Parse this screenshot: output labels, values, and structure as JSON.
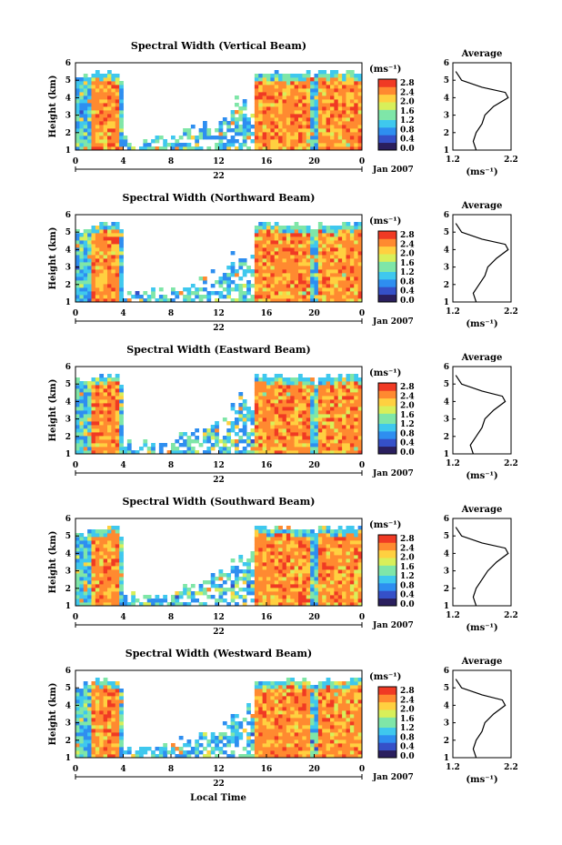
{
  "figure": {
    "xlabel": "Local Time",
    "date_label": "Jan 2007",
    "day_label": "22",
    "ylabel": "Height (km)",
    "colorbar_unit": "(ms⁻¹)",
    "avg_title": "Average",
    "avg_xlabel": "(ms⁻¹)"
  },
  "colors": {
    "scale": [
      "#2a1f5e",
      "#3550c8",
      "#2e8ef0",
      "#3fc8ee",
      "#7fe6a8",
      "#d8ef5a",
      "#ffd040",
      "#ff8a30",
      "#f03a24"
    ]
  },
  "chart_data": [
    {
      "type": "heatmap",
      "title": "Spectral Width (Vertical Beam)",
      "x_ticks": [
        "0",
        "4",
        "8",
        "12",
        "16",
        "20",
        "0"
      ],
      "xlim": [
        0,
        24
      ],
      "y_ticks": [
        "1",
        "2",
        "3",
        "4",
        "5",
        "6"
      ],
      "ylim": [
        1,
        6
      ],
      "colorbar_ticks": [
        "0.0",
        "0.4",
        "0.8",
        "1.2",
        "1.6",
        "2.0",
        "2.4",
        "2.8"
      ],
      "colorbar_range": [
        0.0,
        2.8
      ],
      "high_width_periods": [
        [
          1.5,
          3.5
        ],
        [
          15,
          19.5
        ],
        [
          20.5,
          24
        ]
      ],
      "avg_profile": {
        "x_ticks": [
          "1.2",
          "2.2"
        ],
        "xlim": [
          1.2,
          2.2
        ],
        "y_ticks": [
          "1",
          "2",
          "3",
          "4",
          "5",
          "6"
        ],
        "height": [
          1.0,
          1.5,
          2.0,
          2.5,
          3.0,
          3.5,
          4.0,
          4.3,
          4.6,
          5.0,
          5.5
        ],
        "width": [
          1.6,
          1.55,
          1.6,
          1.7,
          1.75,
          1.9,
          2.15,
          2.1,
          1.7,
          1.35,
          1.25
        ]
      }
    },
    {
      "type": "heatmap",
      "title": "Spectral Width (Northward Beam)",
      "x_ticks": [
        "0",
        "4",
        "8",
        "12",
        "16",
        "20",
        "0"
      ],
      "xlim": [
        0,
        24
      ],
      "y_ticks": [
        "1",
        "2",
        "3",
        "4",
        "5",
        "6"
      ],
      "ylim": [
        1,
        6
      ],
      "colorbar_ticks": [
        "0.0",
        "0.4",
        "0.8",
        "1.2",
        "1.6",
        "2.0",
        "2.4",
        "2.8"
      ],
      "colorbar_range": [
        0.0,
        2.8
      ],
      "high_width_periods": [
        [
          1.5,
          3.5
        ],
        [
          15,
          19.5
        ],
        [
          20.5,
          24
        ]
      ],
      "avg_profile": {
        "x_ticks": [
          "1.2",
          "2.2"
        ],
        "xlim": [
          1.2,
          2.2
        ],
        "y_ticks": [
          "1",
          "2",
          "3",
          "4",
          "5",
          "6"
        ],
        "height": [
          1.0,
          1.5,
          2.0,
          2.5,
          3.0,
          3.5,
          4.0,
          4.3,
          4.6,
          5.0,
          5.5
        ],
        "width": [
          1.6,
          1.55,
          1.65,
          1.75,
          1.8,
          1.95,
          2.15,
          2.1,
          1.7,
          1.35,
          1.25
        ]
      }
    },
    {
      "type": "heatmap",
      "title": "Spectral Width (Eastward Beam)",
      "x_ticks": [
        "0",
        "4",
        "8",
        "12",
        "16",
        "20",
        "0"
      ],
      "xlim": [
        0,
        24
      ],
      "y_ticks": [
        "1",
        "2",
        "3",
        "4",
        "5",
        "6"
      ],
      "ylim": [
        1,
        6
      ],
      "colorbar_ticks": [
        "0.0",
        "0.4",
        "0.8",
        "1.2",
        "1.6",
        "2.0",
        "2.4",
        "2.8"
      ],
      "colorbar_range": [
        0.0,
        2.8
      ],
      "high_width_periods": [
        [
          1.5,
          3.5
        ],
        [
          15,
          19.5
        ],
        [
          20.5,
          24
        ]
      ],
      "avg_profile": {
        "x_ticks": [
          "1.2",
          "2.2"
        ],
        "xlim": [
          1.2,
          2.2
        ],
        "y_ticks": [
          "1",
          "2",
          "3",
          "4",
          "5",
          "6"
        ],
        "height": [
          1.0,
          1.5,
          2.0,
          2.5,
          3.0,
          3.5,
          4.0,
          4.3,
          4.6,
          5.0,
          5.5
        ],
        "width": [
          1.55,
          1.5,
          1.6,
          1.7,
          1.75,
          1.9,
          2.1,
          2.05,
          1.7,
          1.35,
          1.25
        ]
      }
    },
    {
      "type": "heatmap",
      "title": "Spectral Width (Southward Beam)",
      "x_ticks": [
        "0",
        "4",
        "8",
        "12",
        "16",
        "20",
        "0"
      ],
      "xlim": [
        0,
        24
      ],
      "y_ticks": [
        "1",
        "2",
        "3",
        "4",
        "5",
        "6"
      ],
      "ylim": [
        1,
        6
      ],
      "colorbar_ticks": [
        "0.0",
        "0.4",
        "0.8",
        "1.2",
        "1.6",
        "2.0",
        "2.4",
        "2.8"
      ],
      "colorbar_range": [
        0.0,
        2.8
      ],
      "high_width_periods": [
        [
          1.5,
          3.5
        ],
        [
          15,
          19.5
        ],
        [
          20.5,
          24
        ]
      ],
      "avg_profile": {
        "x_ticks": [
          "1.2",
          "2.2"
        ],
        "xlim": [
          1.2,
          2.2
        ],
        "y_ticks": [
          "1",
          "2",
          "3",
          "4",
          "5",
          "6"
        ],
        "height": [
          1.0,
          1.5,
          2.0,
          2.5,
          3.0,
          3.5,
          4.0,
          4.3,
          4.6,
          5.0,
          5.5
        ],
        "width": [
          1.6,
          1.55,
          1.6,
          1.7,
          1.8,
          1.95,
          2.15,
          2.1,
          1.7,
          1.35,
          1.25
        ]
      }
    },
    {
      "type": "heatmap",
      "title": "Spectral Width (Westward Beam)",
      "x_ticks": [
        "0",
        "4",
        "8",
        "12",
        "16",
        "20",
        "0"
      ],
      "xlim": [
        0,
        24
      ],
      "y_ticks": [
        "1",
        "2",
        "3",
        "4",
        "5",
        "6"
      ],
      "ylim": [
        1,
        6
      ],
      "colorbar_ticks": [
        "0.0",
        "0.4",
        "0.8",
        "1.2",
        "1.6",
        "2.0",
        "2.4",
        "2.8"
      ],
      "colorbar_range": [
        0.0,
        2.8
      ],
      "high_width_periods": [
        [
          1.5,
          3.5
        ],
        [
          15,
          19.5
        ],
        [
          20.5,
          24
        ]
      ],
      "avg_profile": {
        "x_ticks": [
          "1.2",
          "2.2"
        ],
        "xlim": [
          1.2,
          2.2
        ],
        "y_ticks": [
          "1",
          "2",
          "3",
          "4",
          "5",
          "6"
        ],
        "height": [
          1.0,
          1.5,
          2.0,
          2.5,
          3.0,
          3.5,
          4.0,
          4.3,
          4.6,
          5.0,
          5.5
        ],
        "width": [
          1.6,
          1.55,
          1.6,
          1.7,
          1.75,
          1.9,
          2.1,
          2.05,
          1.7,
          1.35,
          1.25
        ]
      }
    }
  ]
}
